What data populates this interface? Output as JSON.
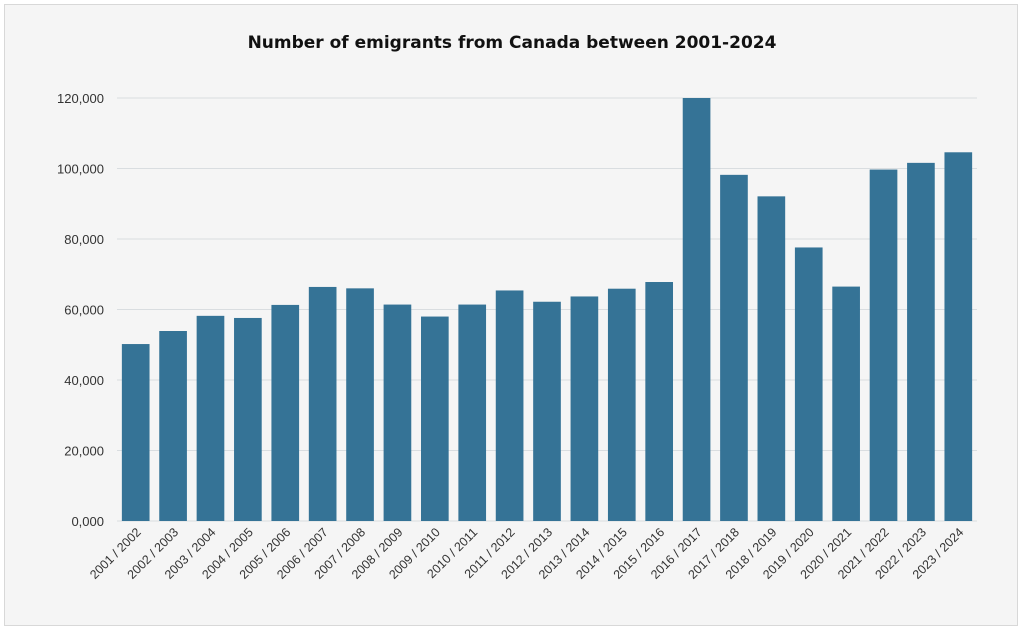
{
  "chart_data": {
    "type": "bar",
    "title": "Number of emigrants from Canada between 2001-2024",
    "xlabel": "",
    "ylabel": "",
    "ylim": [
      0,
      120000
    ],
    "yticks": [
      "0,000",
      "20,000",
      "40,000",
      "60,000",
      "80,000",
      "100,000",
      "120,000"
    ],
    "grid": true,
    "bar_color": "#357396",
    "categories": [
      "2001 / 2002",
      "2002 / 2003",
      "2003 / 2004",
      "2004 / 2005",
      "2005 / 2006",
      "2006 / 2007",
      "2007 / 2008",
      "2008 / 2009",
      "2009 / 2010",
      "2010 / 2011",
      "2011 / 2012",
      "2012 / 2013",
      "2013 / 2014",
      "2014 / 2015",
      "2015 / 2016",
      "2016 / 2017",
      "2017 / 2018",
      "2018 / 2019",
      "2019 / 2020",
      "2020 / 2021",
      "2021 / 2022",
      "2022 / 2023",
      "2023 / 2024"
    ],
    "values": [
      50200,
      53900,
      58200,
      57600,
      61300,
      66400,
      66000,
      61400,
      58000,
      61400,
      65400,
      62200,
      63700,
      65900,
      67800,
      120000,
      98200,
      92100,
      77600,
      66500,
      99700,
      101600,
      104600
    ]
  }
}
